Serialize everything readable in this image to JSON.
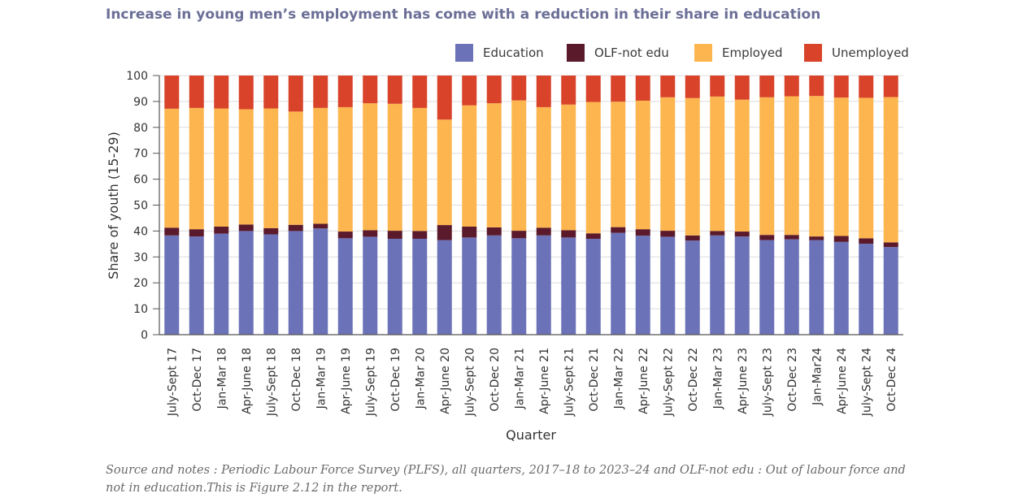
{
  "chart_data": {
    "type": "bar",
    "stacked": true,
    "title": "Increase in young men’s employment has come with a reduction in their share in education",
    "xlabel": "Quarter",
    "ylabel": "Share of youth (15-29)",
    "ylim": [
      0,
      100
    ],
    "yticks": [
      0,
      10,
      20,
      30,
      40,
      50,
      60,
      70,
      80,
      90,
      100
    ],
    "grid": true,
    "legend_position": "top-right",
    "categories": [
      "July-Sept 17",
      "Oct-Dec 17",
      "Jan-Mar 18",
      "Apr-June 18",
      "July-Sept 18",
      "Oct-Dec 18",
      "Jan-Mar 19",
      "Apr-June 19",
      "July-Sept 19",
      "Oct-Dec 19",
      "Jan-Mar 20",
      "Apr-June 20",
      "July-Sept 20",
      "Oct-Dec 20",
      "Jan-Mar 21",
      "Apr-June 21",
      "July-Sept 21",
      "Oct-Dec 21",
      "Jan-Mar 22",
      "Apr-June 22",
      "July-Sept 22",
      "Oct-Dec 22",
      "Jan-Mar 23",
      "Apr-June 23",
      "July-Sept 23",
      "Oct-Dec 23",
      "Jan-Mar24",
      "Apr-June 24",
      "July-Sept 24",
      "Oct-Dec 24"
    ],
    "series": [
      {
        "name": "Education",
        "color": "#6c72b8",
        "values": [
          38.3,
          37.9,
          39.0,
          40.0,
          38.7,
          40.0,
          41.0,
          37.2,
          37.8,
          37.0,
          37.0,
          36.5,
          37.5,
          38.3,
          37.2,
          38.3,
          37.5,
          37.0,
          39.3,
          38.2,
          37.8,
          36.3,
          38.3,
          37.9,
          36.5,
          36.8,
          36.5,
          35.8,
          35.1,
          33.8
        ]
      },
      {
        "name": "OLF-not edu",
        "color": "#5b1a2c",
        "values": [
          3.0,
          2.8,
          2.7,
          2.5,
          2.4,
          2.4,
          1.8,
          2.6,
          2.5,
          3.1,
          3.0,
          5.8,
          4.2,
          3.1,
          2.9,
          3.0,
          2.8,
          2.1,
          2.2,
          2.5,
          2.3,
          2.0,
          1.7,
          1.9,
          2.0,
          1.7,
          1.4,
          2.3,
          2.1,
          1.8
        ]
      },
      {
        "name": "Employed",
        "color": "#fdb64f",
        "values": [
          45.9,
          46.8,
          45.6,
          44.5,
          46.2,
          43.7,
          44.7,
          48.0,
          49.0,
          49.0,
          47.5,
          40.7,
          46.8,
          47.9,
          50.3,
          46.5,
          48.5,
          50.7,
          48.4,
          49.6,
          51.5,
          53.0,
          51.9,
          50.9,
          53.1,
          53.5,
          54.2,
          53.4,
          54.2,
          56.1
        ]
      },
      {
        "name": "Unemployed",
        "color": "#d8432a",
        "values": [
          12.8,
          12.5,
          12.7,
          13.0,
          12.7,
          13.9,
          12.5,
          12.2,
          10.7,
          10.9,
          12.5,
          17.0,
          11.5,
          10.7,
          9.6,
          12.2,
          11.2,
          10.2,
          10.1,
          9.7,
          8.4,
          8.7,
          8.1,
          9.3,
          8.4,
          8.0,
          7.9,
          8.5,
          8.6,
          8.3
        ]
      }
    ]
  },
  "note": "Source and notes : Periodic Labour Force Survey (PLFS), all quarters, 2017–18 to 2023–24 and OLF-not edu : Out of labour force and not in education.This is Figure 2.12 in the report.",
  "colors": {
    "gridline": "#dcdcdc",
    "axis": "#555555"
  }
}
